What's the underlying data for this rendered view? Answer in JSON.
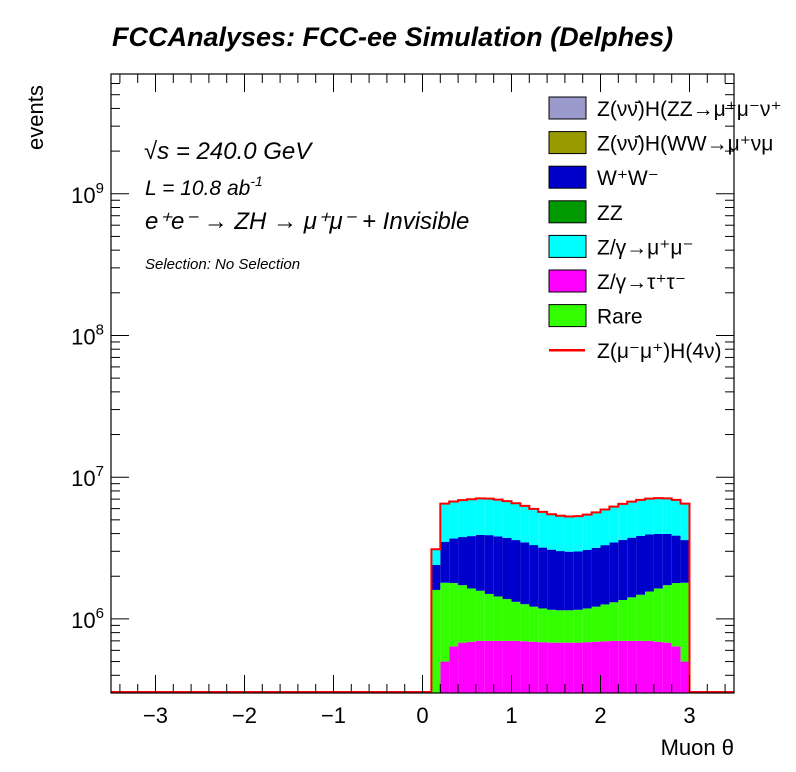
{
  "chart_data": {
    "type": "area",
    "title": "FCCAnalyses: FCC-ee Simulation (Delphes)",
    "xlabel": "Muon θ",
    "ylabel": "events",
    "xlim": [
      -3.5,
      3.5
    ],
    "ylim": [
      300000,
      7000000000
    ],
    "yscale": "log",
    "xticks": [
      -3,
      -2,
      -1,
      0,
      1,
      2,
      3
    ],
    "xtick_labels": [
      "−3",
      "−2",
      "−1",
      "0",
      "1",
      "2",
      "3"
    ],
    "yticks": [
      {
        "base": "10",
        "exp": "6",
        "value": 1000000
      },
      {
        "base": "10",
        "exp": "7",
        "value": 10000000
      },
      {
        "base": "10",
        "exp": "8",
        "value": 100000000
      },
      {
        "base": "10",
        "exp": "9",
        "value": 1000000000
      }
    ],
    "annotations": {
      "sqrt_s": "√s = 240.0 GeV",
      "lumi_prefix": "L = 10.8 ab",
      "lumi_exp": "-1",
      "process": "e⁺e⁻ → ZH → μ⁺μ⁻ + Invisible",
      "selection": "Selection: No Selection"
    },
    "legend_position": "top-right",
    "legend": [
      {
        "label": "Z(νν̄)H(ZZ→μ⁺μ⁻ν⁺",
        "color": "#9999cc",
        "kind": "fill"
      },
      {
        "label": "Z(νν̄)H(WW→μ⁺νμ",
        "color": "#999900",
        "kind": "fill"
      },
      {
        "label": "W⁺W⁻",
        "color": "#0000cc",
        "kind": "fill"
      },
      {
        "label": "ZZ",
        "color": "#009900",
        "kind": "fill"
      },
      {
        "label": "Z/γ→μ⁺μ⁻",
        "color": "#00ffff",
        "kind": "fill"
      },
      {
        "label": "Z/γ→τ⁺τ⁻",
        "color": "#ff00ff",
        "kind": "fill"
      },
      {
        "label": "Rare",
        "color": "#33ff00",
        "kind": "fill"
      },
      {
        "label": "Z(μ⁻μ⁺)H(4ν)",
        "color": "#ff0000",
        "kind": "line"
      }
    ],
    "bin_edges": [
      0.1,
      0.2,
      0.3,
      0.4,
      0.5,
      0.6,
      0.7,
      0.8,
      0.9,
      1.0,
      1.1,
      1.2,
      1.3,
      1.4,
      1.5,
      1.6,
      1.7,
      1.8,
      1.9,
      2.0,
      2.1,
      2.2,
      2.3,
      2.4,
      2.5,
      2.6,
      2.7,
      2.8,
      2.9,
      3.0
    ],
    "stack": [
      {
        "name": "Z/γ→τ⁺τ⁻",
        "color": "#ff00ff",
        "values": [
          1,
          500000,
          640000,
          680000,
          690000,
          700000,
          700000,
          700000,
          700000,
          700000,
          695000,
          690000,
          685000,
          680000,
          680000,
          680000,
          680000,
          685000,
          690000,
          695000,
          700000,
          700000,
          700000,
          700000,
          700000,
          690000,
          680000,
          640000,
          500000
        ]
      },
      {
        "name": "Rare",
        "color": "#33ff00",
        "values": [
          1600000,
          1300000,
          1150000,
          1050000,
          950000,
          880000,
          800000,
          740000,
          680000,
          620000,
          575000,
          530000,
          500000,
          480000,
          470000,
          470000,
          480000,
          500000,
          530000,
          570000,
          610000,
          660000,
          720000,
          780000,
          860000,
          950000,
          1050000,
          1150000,
          1300000
        ]
      },
      {
        "name": "ZZ",
        "color": "#009900",
        "values": [
          100,
          100,
          100,
          100,
          100,
          100,
          100,
          100,
          100,
          100,
          100,
          100,
          100,
          100,
          100,
          100,
          100,
          100,
          100,
          100,
          100,
          100,
          100,
          100,
          100,
          100,
          100,
          100,
          100
        ]
      },
      {
        "name": "W⁺W⁻",
        "color": "#0000cc",
        "values": [
          800000,
          1700000,
          1900000,
          2050000,
          2200000,
          2330000,
          2400000,
          2380000,
          2350000,
          2280000,
          2200000,
          2100000,
          2000000,
          1920000,
          1860000,
          1830000,
          1830000,
          1880000,
          1950000,
          2050000,
          2150000,
          2250000,
          2320000,
          2370000,
          2380000,
          2340000,
          2250000,
          2080000,
          1800000
        ]
      },
      {
        "name": "Z/γ→μ⁺μ⁻",
        "color": "#00ffff",
        "values": [
          700000,
          3000000,
          3050000,
          3100000,
          3150000,
          3170000,
          3150000,
          3120000,
          3050000,
          2950000,
          2800000,
          2650000,
          2500000,
          2390000,
          2330000,
          2300000,
          2320000,
          2380000,
          2470000,
          2600000,
          2740000,
          2870000,
          2980000,
          3060000,
          3110000,
          3130000,
          3100000,
          3050000,
          2900000
        ]
      },
      {
        "name": "Z(νν̄)H(WW→μ⁺νμ",
        "color": "#999900",
        "values": [
          1000,
          1000,
          1000,
          1000,
          1000,
          1000,
          1000,
          1000,
          1000,
          1000,
          1000,
          1000,
          1000,
          1000,
          1000,
          1000,
          1000,
          1000,
          1000,
          1000,
          1000,
          1000,
          1000,
          1000,
          1000,
          1000,
          1000,
          1000,
          1000
        ]
      },
      {
        "name": "Z(νν̄)H(ZZ→μ⁺μ⁻ν⁺",
        "color": "#9999cc",
        "values": [
          100,
          100,
          100,
          100,
          100,
          100,
          100,
          100,
          100,
          100,
          100,
          100,
          100,
          100,
          100,
          100,
          100,
          100,
          100,
          100,
          100,
          100,
          100,
          100,
          100,
          100,
          100,
          100,
          100
        ]
      }
    ],
    "signal": {
      "name": "Z(μ⁻μ⁺)H(4ν)",
      "color": "#ff0000",
      "values": [
        1000,
        2000,
        2000,
        2000,
        2000,
        2000,
        2000,
        2000,
        2000,
        2000,
        2000,
        2000,
        2000,
        2000,
        2000,
        2000,
        2000,
        2000,
        2000,
        2000,
        2000,
        2000,
        2000,
        2000,
        2000,
        2000,
        2000,
        2000,
        2000
      ]
    }
  }
}
